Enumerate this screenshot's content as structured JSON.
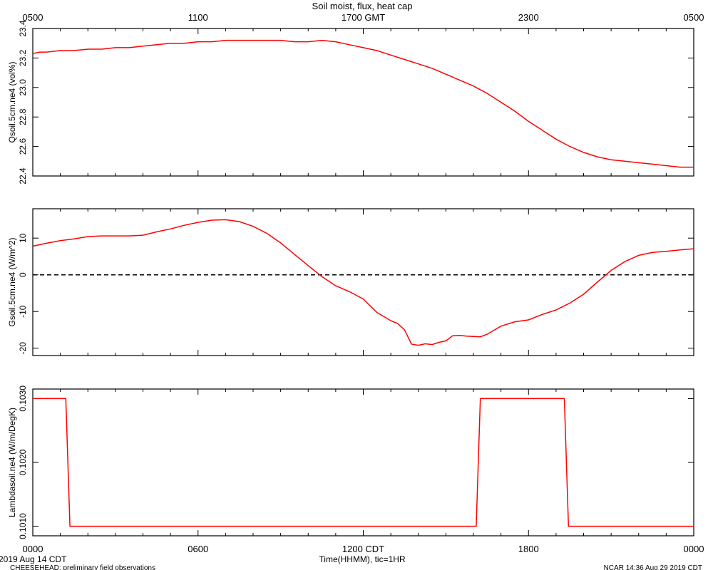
{
  "header": {
    "title": "Soil moist, flux, heat cap"
  },
  "footer": {
    "date": "2019 Aug 14 CDT",
    "project": "CHEESEHEAD: preliminary field observations",
    "stamp": "NCAR 14:36 Aug 29 2019 CDT",
    "xlabel": "Time(HHMM), tic=1HR"
  },
  "colors": {
    "line": "#ff0000",
    "axis": "#000000",
    "zero_line": "#000000"
  },
  "chart_data": [
    {
      "type": "line",
      "ylabel": "Qsoil.5cm.ne4 (vol%)",
      "ylim": [
        22.4,
        23.4
      ],
      "yticks": [
        "22.4",
        "22.6",
        "22.8",
        "23.0",
        "23.2",
        "23.4"
      ],
      "xlim": [
        0,
        24
      ],
      "top_axis_labels": [
        {
          "x": 0,
          "label": "0500"
        },
        {
          "x": 6,
          "label": "1100"
        },
        {
          "x": 12,
          "label": "1700 GMT"
        },
        {
          "x": 18,
          "label": "2300"
        },
        {
          "x": 24,
          "label": "0500"
        }
      ],
      "series": [
        {
          "x": [
            0,
            0.25,
            0.5,
            1,
            1.5,
            2,
            2.5,
            3,
            3.5,
            4,
            4.5,
            5,
            5.5,
            6,
            6.5,
            7,
            7.5,
            8,
            8.5,
            9,
            9.5,
            10,
            10.5,
            11,
            11.5,
            12,
            12.5,
            13,
            13.5,
            14,
            14.5,
            15,
            15.5,
            16,
            16.5,
            17,
            17.5,
            18,
            18.5,
            19,
            19.5,
            20,
            20.5,
            21,
            21.5,
            22,
            22.5,
            23,
            23.5,
            24
          ],
          "y": [
            23.23,
            23.24,
            23.24,
            23.25,
            23.25,
            23.26,
            23.26,
            23.27,
            23.27,
            23.28,
            23.29,
            23.3,
            23.3,
            23.31,
            23.31,
            23.32,
            23.32,
            23.32,
            23.32,
            23.32,
            23.31,
            23.31,
            23.32,
            23.31,
            23.29,
            23.27,
            23.25,
            23.22,
            23.19,
            23.16,
            23.13,
            23.09,
            23.05,
            23.01,
            22.96,
            22.9,
            22.84,
            22.77,
            22.71,
            22.65,
            22.6,
            22.56,
            22.53,
            22.51,
            22.5,
            22.49,
            22.48,
            22.47,
            22.46,
            22.46
          ]
        }
      ]
    },
    {
      "type": "line",
      "ylabel": "Gsoil.5cm.ne4 (W/m^2)",
      "ylim": [
        -22,
        18
      ],
      "yticks": [
        "-20",
        "-10",
        "0",
        "10"
      ],
      "xlim": [
        0,
        24
      ],
      "reference_line": {
        "y": 0,
        "style": "dashed"
      },
      "series": [
        {
          "x": [
            0,
            0.5,
            1,
            1.5,
            2,
            2.5,
            3,
            3.5,
            4,
            4.5,
            5,
            5.5,
            6,
            6.5,
            7,
            7.5,
            8,
            8.5,
            9,
            9.5,
            10,
            10.5,
            11,
            11.5,
            12,
            12.5,
            13,
            13.25,
            13.5,
            13.75,
            14,
            14.25,
            14.5,
            14.75,
            15,
            15.25,
            15.5,
            15.75,
            16,
            16.25,
            16.5,
            17,
            17.5,
            18,
            18.5,
            19,
            19.5,
            20,
            20.5,
            21,
            21.5,
            22,
            22.5,
            23,
            23.5,
            24
          ],
          "y": [
            7.8,
            8.6,
            9.3,
            9.8,
            10.4,
            10.6,
            10.6,
            10.6,
            10.8,
            11.7,
            12.5,
            13.5,
            14.3,
            14.9,
            15.0,
            14.5,
            13.2,
            11.3,
            8.7,
            5.6,
            2.5,
            -0.5,
            -3.0,
            -4.6,
            -6.6,
            -10.3,
            -12.5,
            -13.3,
            -15.0,
            -18.9,
            -19.2,
            -18.8,
            -19.0,
            -18.4,
            -18.0,
            -16.6,
            -16.5,
            -16.7,
            -16.8,
            -16.9,
            -16.2,
            -14.0,
            -12.8,
            -12.3,
            -10.8,
            -9.6,
            -7.7,
            -5.3,
            -2.0,
            1.2,
            3.6,
            5.3,
            6.1,
            6.4,
            6.8,
            7.1
          ]
        }
      ]
    },
    {
      "type": "line",
      "ylabel": "Lambdasoil.ne4 (W/m/DegK)",
      "ylim": [
        0.10085,
        0.10315
      ],
      "yticks": [
        "0.1010",
        "0.1020",
        "0.1030"
      ],
      "xlim": [
        0,
        24
      ],
      "xticks": [
        {
          "x": 0,
          "label": "0000"
        },
        {
          "x": 6,
          "label": "0600"
        },
        {
          "x": 12,
          "label": "1200 CDT"
        },
        {
          "x": 18,
          "label": "1800"
        },
        {
          "x": 24,
          "label": "0000"
        }
      ],
      "series": [
        {
          "x": [
            0,
            1.2,
            1.35,
            16.1,
            16.25,
            19.3,
            19.45,
            24
          ],
          "y": [
            0.103,
            0.103,
            0.101,
            0.101,
            0.103,
            0.103,
            0.101,
            0.101
          ]
        }
      ]
    }
  ]
}
